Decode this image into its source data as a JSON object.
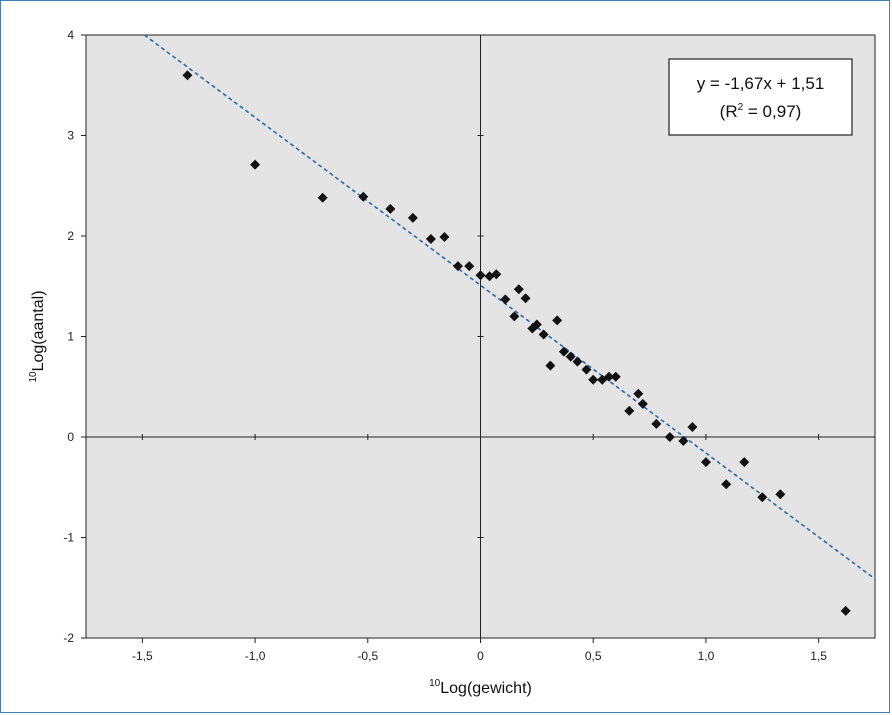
{
  "chart_data": {
    "type": "scatter",
    "title": "",
    "xlabel_sup": "10",
    "xlabel": "Log(gewicht)",
    "ylabel_sup": "10",
    "ylabel": "Log(aantal)",
    "xlim": [
      -1.75,
      1.75
    ],
    "ylim": [
      -2,
      4
    ],
    "x_ticks": [
      -1.5,
      -1.0,
      -0.5,
      0,
      0.5,
      1.0,
      1.5
    ],
    "x_tick_labels": [
      "-1,5",
      "-1,0",
      "-0,5",
      "0",
      "0,5",
      "1,0",
      "1,5"
    ],
    "y_ticks": [
      -2,
      -1,
      0,
      1,
      2,
      3,
      4
    ],
    "y_tick_labels": [
      "-2",
      "-1",
      "0",
      "1",
      "2",
      "3",
      "4"
    ],
    "grid": false,
    "plot_background": "#e4e4e4",
    "marker_color": "#111111",
    "trendline": {
      "slope": -1.67,
      "intercept": 1.51,
      "color": "#2a6ab0",
      "style": "dashed",
      "equation_text": "y = -1,67x + 1,51",
      "r2_prefix": "(R",
      "r2_sup": "2",
      "r2_suffix": " = 0,97)",
      "box_position": "top-right"
    },
    "points": [
      {
        "x": -1.3,
        "y": 3.6
      },
      {
        "x": -1.0,
        "y": 2.71
      },
      {
        "x": -0.7,
        "y": 2.38
      },
      {
        "x": -0.52,
        "y": 2.39
      },
      {
        "x": -0.4,
        "y": 2.27
      },
      {
        "x": -0.3,
        "y": 2.18
      },
      {
        "x": -0.22,
        "y": 1.97
      },
      {
        "x": -0.16,
        "y": 1.99
      },
      {
        "x": -0.1,
        "y": 1.7
      },
      {
        "x": -0.05,
        "y": 1.7
      },
      {
        "x": 0.0,
        "y": 1.61
      },
      {
        "x": 0.04,
        "y": 1.6
      },
      {
        "x": 0.07,
        "y": 1.62
      },
      {
        "x": 0.11,
        "y": 1.37
      },
      {
        "x": 0.15,
        "y": 1.2
      },
      {
        "x": 0.17,
        "y": 1.47
      },
      {
        "x": 0.2,
        "y": 1.38
      },
      {
        "x": 0.23,
        "y": 1.08
      },
      {
        "x": 0.25,
        "y": 1.12
      },
      {
        "x": 0.28,
        "y": 1.02
      },
      {
        "x": 0.31,
        "y": 0.71
      },
      {
        "x": 0.34,
        "y": 1.16
      },
      {
        "x": 0.37,
        "y": 0.85
      },
      {
        "x": 0.4,
        "y": 0.8
      },
      {
        "x": 0.43,
        "y": 0.75
      },
      {
        "x": 0.47,
        "y": 0.67
      },
      {
        "x": 0.5,
        "y": 0.57
      },
      {
        "x": 0.54,
        "y": 0.57
      },
      {
        "x": 0.57,
        "y": 0.6
      },
      {
        "x": 0.6,
        "y": 0.6
      },
      {
        "x": 0.66,
        "y": 0.26
      },
      {
        "x": 0.7,
        "y": 0.43
      },
      {
        "x": 0.72,
        "y": 0.33
      },
      {
        "x": 0.78,
        "y": 0.13
      },
      {
        "x": 0.84,
        "y": 0.0
      },
      {
        "x": 0.9,
        "y": -0.04
      },
      {
        "x": 0.94,
        "y": 0.1
      },
      {
        "x": 1.0,
        "y": -0.25
      },
      {
        "x": 1.09,
        "y": -0.47
      },
      {
        "x": 1.17,
        "y": -0.25
      },
      {
        "x": 1.25,
        "y": -0.6
      },
      {
        "x": 1.33,
        "y": -0.57
      },
      {
        "x": 1.62,
        "y": -1.73
      }
    ]
  }
}
